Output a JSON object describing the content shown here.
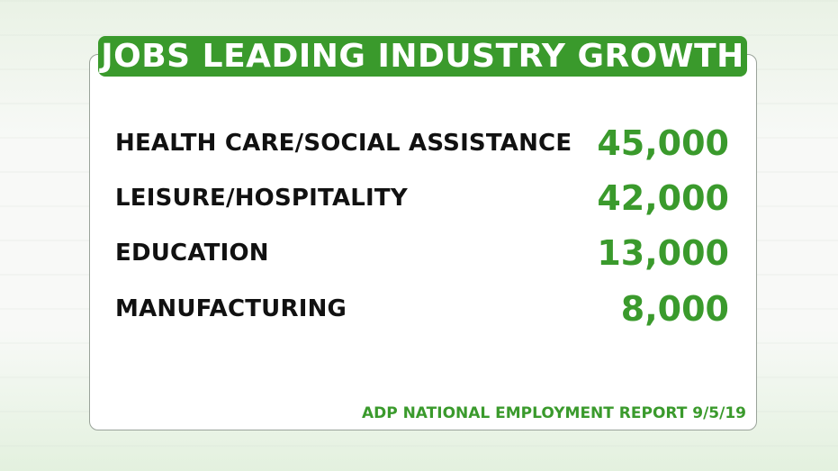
{
  "title": "JOBS LEADING INDUSTRY GROWTH",
  "rows": [
    {
      "label": "HEALTH CARE/SOCIAL ASSISTANCE",
      "value": "45,000"
    },
    {
      "label": "LEISURE/HOSPITALITY",
      "value": "42,000"
    },
    {
      "label": "EDUCATION",
      "value": "13,000"
    },
    {
      "label": "MANUFACTURING",
      "value": "8,000"
    }
  ],
  "source": "ADP NATIONAL EMPLOYMENT REPORT 9/5/19",
  "colors": {
    "accent_green": "#3a9a2c",
    "label_text": "#111111"
  }
}
